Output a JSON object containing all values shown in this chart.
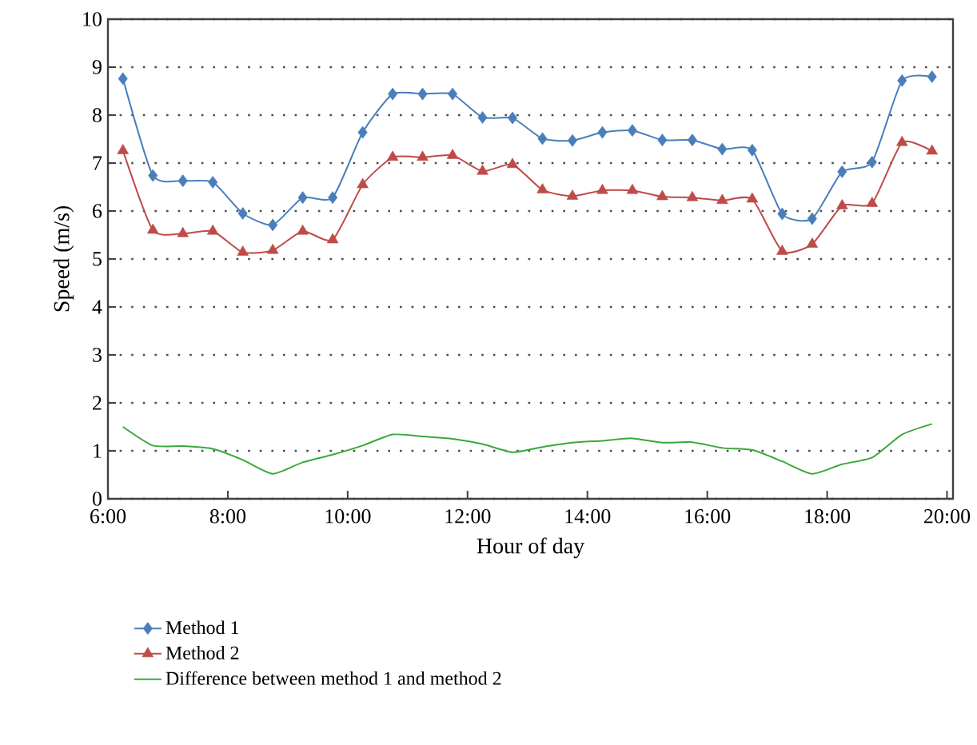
{
  "chart_data": {
    "type": "line",
    "xlabel": "Hour of day",
    "ylabel": "Speed (m/s)",
    "x": [
      6.25,
      6.75,
      7.25,
      7.75,
      8.25,
      8.75,
      9.25,
      9.75,
      10.25,
      10.75,
      11.25,
      11.75,
      12.25,
      12.75,
      13.25,
      13.75,
      14.25,
      14.75,
      15.25,
      15.75,
      16.25,
      16.75,
      17.25,
      17.75,
      18.25,
      18.75,
      19.25,
      19.75
    ],
    "series": [
      {
        "name": "Method 1",
        "color": "#4a7ebb",
        "marker": "diamond",
        "values": [
          8.76,
          6.74,
          6.63,
          6.6,
          5.95,
          5.71,
          6.28,
          6.28,
          7.64,
          8.44,
          8.44,
          8.44,
          7.95,
          7.94,
          7.51,
          7.47,
          7.64,
          7.68,
          7.48,
          7.48,
          7.29,
          7.27,
          5.94,
          5.84,
          6.82,
          7.02,
          8.72,
          8.8
        ]
      },
      {
        "name": "Method 2",
        "color": "#be4b48",
        "marker": "triangle",
        "values": [
          7.26,
          5.6,
          5.53,
          5.58,
          5.14,
          5.18,
          5.58,
          5.4,
          6.55,
          7.12,
          7.12,
          7.16,
          6.83,
          6.97,
          6.44,
          6.31,
          6.43,
          6.43,
          6.3,
          6.28,
          6.22,
          6.25,
          5.16,
          5.31,
          6.11,
          6.16,
          7.43,
          7.25
        ]
      },
      {
        "name": "Difference between method 1 and method 2",
        "color": "#3aa83a",
        "marker": "none",
        "values": [
          1.5,
          1.11,
          1.1,
          1.04,
          0.81,
          0.52,
          0.76,
          0.92,
          1.11,
          1.34,
          1.3,
          1.25,
          1.14,
          0.97,
          1.08,
          1.17,
          1.21,
          1.26,
          1.17,
          1.18,
          1.06,
          1.02,
          0.78,
          0.52,
          0.72,
          0.86,
          1.34,
          1.56
        ]
      }
    ],
    "xlim": [
      6,
      20.1
    ],
    "ylim": [
      0,
      10
    ],
    "xticks": [
      {
        "value": 6,
        "label": "6:00"
      },
      {
        "value": 8,
        "label": "8:00"
      },
      {
        "value": 10,
        "label": "10:00"
      },
      {
        "value": 12,
        "label": "12:00"
      },
      {
        "value": 14,
        "label": "14:00"
      },
      {
        "value": 16,
        "label": "16:00"
      },
      {
        "value": 18,
        "label": "18:00"
      },
      {
        "value": 20,
        "label": "20:00"
      }
    ],
    "yticks": [
      0,
      1,
      2,
      3,
      4,
      5,
      6,
      7,
      8,
      9,
      10
    ],
    "grid": "y",
    "legend": "bottom",
    "line_style": "solid"
  }
}
